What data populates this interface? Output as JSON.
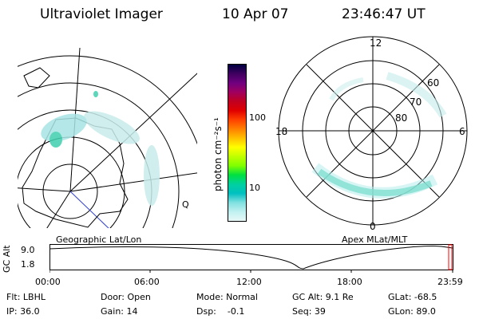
{
  "header": {
    "title": "Ultraviolet Imager",
    "date": "10 Apr 07",
    "time": "23:46:47 UT"
  },
  "colorbar": {
    "label": "photon cm⁻²s⁻¹",
    "ticks": [
      "100",
      "10"
    ],
    "colors": [
      "#000040",
      "#400060",
      "#700080",
      "#a00060",
      "#c00020",
      "#e00000",
      "#ff4000",
      "#ff8000",
      "#ffc000",
      "#ffff00",
      "#c0ff00",
      "#80ff00",
      "#00e040",
      "#00d0a0",
      "#00c0c0",
      "#80e0e0",
      "#c0f0f0",
      "#e8f8f8"
    ]
  },
  "geo_panel": {
    "caption": "Geographic Lat/Lon",
    "right_marker": "Q"
  },
  "polar_panel": {
    "caption": "Apex MLat/MLT",
    "mlt_labels": {
      "top": "12",
      "bottom": "0",
      "left": "18",
      "right": "6"
    },
    "lat_labels": [
      "60",
      "70",
      "80"
    ]
  },
  "altitude_plot": {
    "ylabel": "GC Alt",
    "yticks": [
      "9.0",
      "1.8"
    ],
    "xticks": [
      "00:00",
      "06:00",
      "12:00",
      "18:00",
      "23:59"
    ],
    "cursor_color": "#ff0000"
  },
  "status": {
    "flt": "Flt: LBHL",
    "ip": "IP: 36.0",
    "door": "Door: Open",
    "gain": "Gain: 14",
    "mode": "Mode: Normal",
    "dsp": "Dsp:    -0.1",
    "gcalt": "GC Alt: 9.1 Re",
    "seq": "Seq: 39",
    "glat": "GLat: -68.5",
    "glon": "GLon: 89.0"
  }
}
